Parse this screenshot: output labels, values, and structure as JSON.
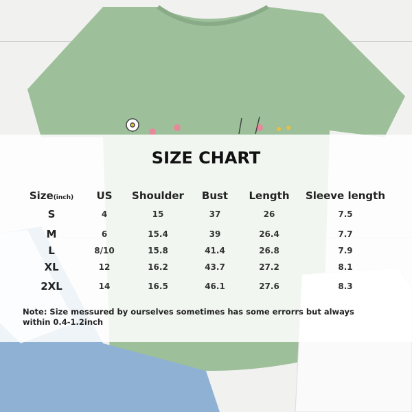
{
  "title": "SIZE CHART",
  "headers": {
    "size": "Size",
    "size_unit": "(inch)",
    "us": "US",
    "shoulder": "Shoulder",
    "bust": "Bust",
    "length": "Length",
    "sleeve": "Sleeve length"
  },
  "rows": [
    {
      "size": "S",
      "us": "4",
      "shoulder": "15",
      "bust": "37",
      "length": "26",
      "sleeve": "7.5"
    },
    {
      "size": "M",
      "us": "6",
      "shoulder": "15.4",
      "bust": "39",
      "length": "26.4",
      "sleeve": "7.7"
    },
    {
      "size": "L",
      "us": "8/10",
      "shoulder": "15.8",
      "bust": "41.4",
      "length": "26.8",
      "sleeve": "7.9"
    },
    {
      "size": "XL",
      "us": "12",
      "shoulder": "16.2",
      "bust": "43.7",
      "length": "27.2",
      "sleeve": "8.1"
    },
    {
      "size": "2XL",
      "us": "14",
      "shoulder": "16.5",
      "bust": "46.1",
      "length": "27.6",
      "sleeve": "8.3"
    }
  ],
  "note": "Note:  Size messured by ourselves sometimes has some errorrs but always within 0.4-1.2inch",
  "colors": {
    "shirt": "#9dbf9a",
    "jeans": "#8fb2d4",
    "panel": "#ffffff"
  }
}
